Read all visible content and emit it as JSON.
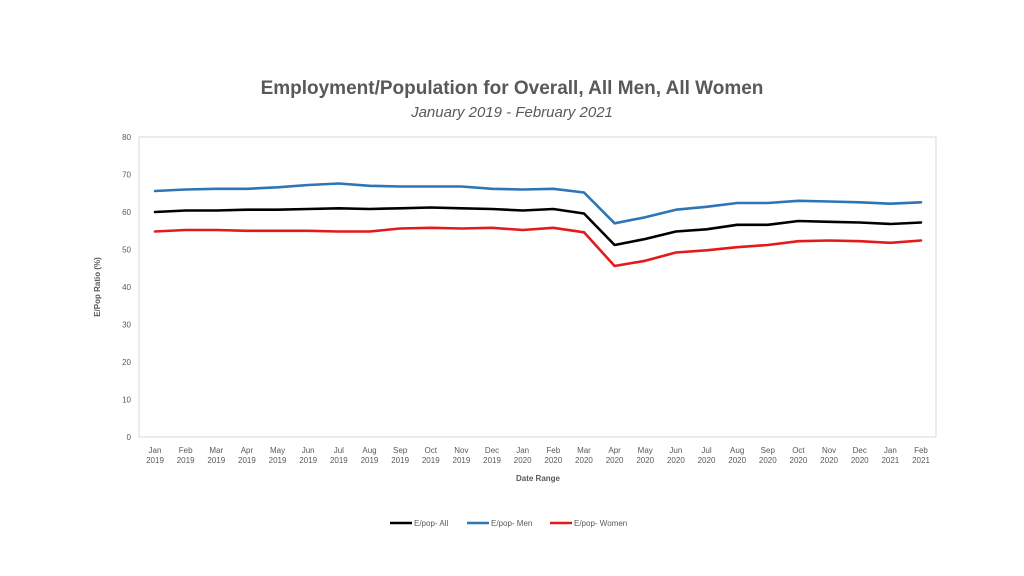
{
  "chart_data": {
    "type": "line",
    "title": "Employment/Population for Overall, All Men, All Women",
    "subtitle": "January 2019 - February 2021",
    "xlabel": "Date Range",
    "ylabel": "E/Pop Ratio (%)",
    "ylim": [
      0,
      80
    ],
    "yticks": [
      "0",
      "10",
      "20",
      "30",
      "40",
      "50",
      "60",
      "70",
      "80"
    ],
    "grid": false,
    "legend_position": "bottom",
    "categories": [
      [
        "Jan",
        "2019"
      ],
      [
        "Feb",
        "2019"
      ],
      [
        "Mar",
        "2019"
      ],
      [
        "Apr",
        "2019"
      ],
      [
        "May",
        "2019"
      ],
      [
        "Jun",
        "2019"
      ],
      [
        "Jul",
        "2019"
      ],
      [
        "Aug",
        "2019"
      ],
      [
        "Sep",
        "2019"
      ],
      [
        "Oct",
        "2019"
      ],
      [
        "Nov",
        "2019"
      ],
      [
        "Dec",
        "2019"
      ],
      [
        "Jan",
        "2020"
      ],
      [
        "Feb",
        "2020"
      ],
      [
        "Mar",
        "2020"
      ],
      [
        "Apr",
        "2020"
      ],
      [
        "May",
        "2020"
      ],
      [
        "Jun",
        "2020"
      ],
      [
        "Jul",
        "2020"
      ],
      [
        "Aug",
        "2020"
      ],
      [
        "Sep",
        "2020"
      ],
      [
        "Oct",
        "2020"
      ],
      [
        "Nov",
        "2020"
      ],
      [
        "Dec",
        "2020"
      ],
      [
        "Jan",
        "2021"
      ],
      [
        "Feb",
        "2021"
      ]
    ],
    "series": [
      {
        "name": "E/pop- All",
        "color": "#000000",
        "values": [
          60.0,
          60.4,
          60.4,
          60.6,
          60.6,
          60.8,
          61.0,
          60.8,
          61.0,
          61.2,
          61.0,
          60.8,
          60.4,
          60.8,
          59.6,
          51.2,
          52.8,
          54.8,
          55.4,
          56.6,
          56.6,
          57.6,
          57.4,
          57.2,
          56.8,
          57.2
        ]
      },
      {
        "name": "E/pop- Men",
        "color": "#2E75B6",
        "values": [
          65.6,
          66.0,
          66.2,
          66.2,
          66.6,
          67.2,
          67.6,
          67.0,
          66.8,
          66.8,
          66.8,
          66.2,
          66.0,
          66.2,
          65.2,
          57.0,
          58.6,
          60.6,
          61.4,
          62.4,
          62.4,
          63.0,
          62.8,
          62.6,
          62.2,
          62.6
        ]
      },
      {
        "name": "E/pop- Women",
        "color": "#E31A1C",
        "values": [
          54.8,
          55.2,
          55.2,
          55.0,
          55.0,
          55.0,
          54.8,
          54.8,
          55.6,
          55.8,
          55.6,
          55.8,
          55.2,
          55.8,
          54.6,
          45.6,
          47.0,
          49.2,
          49.8,
          50.6,
          51.2,
          52.2,
          52.4,
          52.2,
          51.8,
          52.4
        ]
      }
    ]
  }
}
